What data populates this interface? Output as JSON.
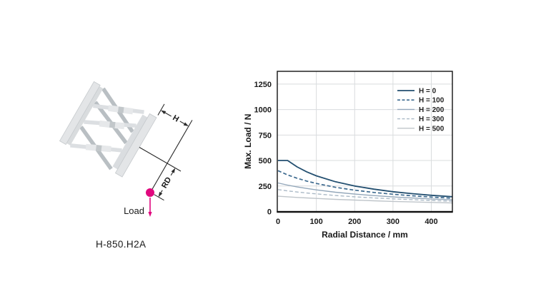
{
  "diagram": {
    "model_label": "H-850.H2A",
    "load_label": "Load",
    "h_dim_label": "H",
    "rd_dim_label": "RD",
    "accent_color": "#e0077e"
  },
  "chart_data": {
    "type": "line",
    "title": "",
    "xlabel": "Radial Distance / mm",
    "ylabel": "Max. Load / N",
    "xlim": [
      0,
      455
    ],
    "ylim": [
      0,
      1375
    ],
    "xticks": [
      0,
      100,
      200,
      300,
      400
    ],
    "yticks": [
      0,
      250,
      500,
      750,
      1000,
      1250
    ],
    "grid": true,
    "legend_position": "top-right-inside",
    "series": [
      {
        "name": "H = 0",
        "color": "#234f70",
        "dash": "solid",
        "width": 1.8,
        "points": [
          [
            0,
            500
          ],
          [
            25,
            500
          ],
          [
            50,
            437
          ],
          [
            75,
            389
          ],
          [
            100,
            350
          ],
          [
            150,
            292
          ],
          [
            200,
            250
          ],
          [
            250,
            219
          ],
          [
            300,
            194
          ],
          [
            350,
            175
          ],
          [
            400,
            159
          ],
          [
            455,
            145
          ]
        ]
      },
      {
        "name": "H = 100",
        "color": "#3d6a8f",
        "dash": "dashed",
        "width": 1.7,
        "points": [
          [
            0,
            400
          ],
          [
            25,
            359
          ],
          [
            50,
            326
          ],
          [
            75,
            298
          ],
          [
            100,
            275
          ],
          [
            150,
            237
          ],
          [
            200,
            209
          ],
          [
            250,
            187
          ],
          [
            300,
            169
          ],
          [
            350,
            154
          ],
          [
            400,
            141
          ],
          [
            455,
            130
          ]
        ]
      },
      {
        "name": "H = 200",
        "color": "#93a7ba",
        "dash": "solid",
        "width": 1.4,
        "points": [
          [
            0,
            280
          ],
          [
            25,
            259
          ],
          [
            50,
            241
          ],
          [
            75,
            226
          ],
          [
            100,
            212
          ],
          [
            150,
            189
          ],
          [
            200,
            171
          ],
          [
            250,
            156
          ],
          [
            300,
            143
          ],
          [
            350,
            132
          ],
          [
            400,
            123
          ],
          [
            455,
            114
          ]
        ]
      },
      {
        "name": "H = 300",
        "color": "#aab9c6",
        "dash": "dashed",
        "width": 1.4,
        "points": [
          [
            0,
            215
          ],
          [
            25,
            202
          ],
          [
            50,
            191
          ],
          [
            75,
            181
          ],
          [
            100,
            173
          ],
          [
            150,
            157
          ],
          [
            200,
            144
          ],
          [
            250,
            133
          ],
          [
            300,
            124
          ],
          [
            350,
            116
          ],
          [
            400,
            108
          ],
          [
            455,
            101
          ]
        ]
      },
      {
        "name": "H = 500",
        "color": "#bfc5ca",
        "dash": "solid",
        "width": 1.4,
        "points": [
          [
            0,
            150
          ],
          [
            25,
            144
          ],
          [
            50,
            138
          ],
          [
            75,
            133
          ],
          [
            100,
            128
          ],
          [
            150,
            119
          ],
          [
            200,
            112
          ],
          [
            250,
            105
          ],
          [
            300,
            99
          ],
          [
            350,
            94
          ],
          [
            400,
            89
          ],
          [
            455,
            84
          ]
        ]
      }
    ]
  }
}
